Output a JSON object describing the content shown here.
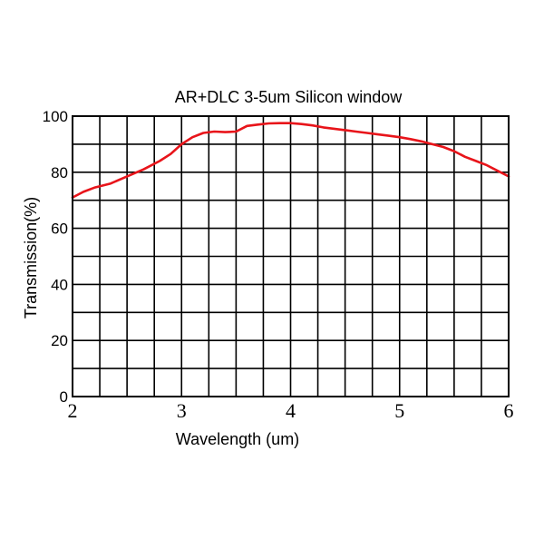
{
  "chart_data": {
    "type": "line",
    "title": "AR+DLC 3-5um Silicon window",
    "xlabel": "Wavelength (um)",
    "ylabel": "Transmission(%)",
    "xlim": [
      2,
      6
    ],
    "ylim": [
      0,
      100
    ],
    "x_ticks": [
      "2",
      "3",
      "4",
      "5",
      "6"
    ],
    "y_ticks": [
      "0",
      "20",
      "40",
      "60",
      "80",
      "100"
    ],
    "grid": true,
    "x_grid_step": 0.25,
    "y_grid_step": 10,
    "line_color": "#e8141a",
    "series": [
      {
        "x": [
          2.0,
          2.1,
          2.2,
          2.35,
          2.5,
          2.65,
          2.8,
          2.9,
          3.0,
          3.1,
          3.2,
          3.3,
          3.4,
          3.5,
          3.6,
          3.7,
          3.8,
          3.9,
          4.0,
          4.1,
          4.2,
          4.3,
          4.4,
          4.5,
          4.6,
          4.7,
          4.8,
          4.9,
          5.0,
          5.1,
          5.2,
          5.3,
          5.4,
          5.5,
          5.6,
          5.7,
          5.8,
          5.9,
          6.0
        ],
        "y": [
          71,
          73,
          74.5,
          76,
          78.5,
          81,
          84,
          86.5,
          90,
          92.5,
          94,
          94.5,
          94.3,
          94.5,
          96.5,
          97,
          97.4,
          97.5,
          97.5,
          97.2,
          96.7,
          96,
          95.5,
          95,
          94.5,
          94,
          93.5,
          93,
          92.5,
          91.8,
          91,
          90,
          89,
          87.5,
          85.5,
          84,
          82.5,
          80.5,
          78.5
        ]
      }
    ]
  }
}
